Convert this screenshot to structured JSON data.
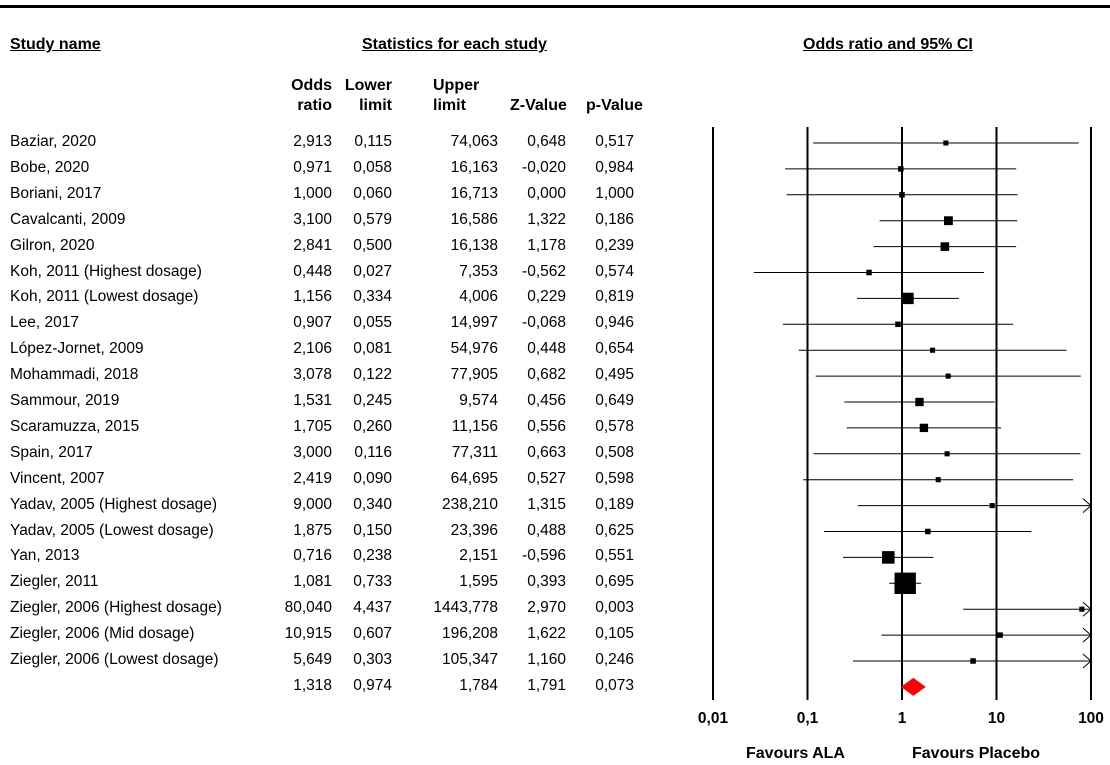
{
  "headers": {
    "study_name": "Study name",
    "statistics": "Statistics for each study",
    "forest": "Odds ratio and 95% CI"
  },
  "columns": {
    "or": [
      "Odds",
      "ratio"
    ],
    "lower": [
      "Lower",
      "limit"
    ],
    "upper": [
      "Upper",
      "limit"
    ],
    "z": [
      "Z-Value"
    ],
    "p": [
      "p-Value"
    ]
  },
  "chart_data": {
    "type": "forest",
    "scale": "log",
    "xlim": [
      0.01,
      100
    ],
    "x_ticks": [
      "0,01",
      "0,1",
      "1",
      "10",
      "100"
    ],
    "x_tick_values": [
      0.01,
      0.1,
      1,
      10,
      100
    ],
    "favours_left": "Favours ALA",
    "favours_right": "Favours Placebo",
    "summary_color": "#ff0000",
    "studies": [
      {
        "name": "Baziar, 2020",
        "or": "2,913",
        "lower": "0,115",
        "upper": "74,063",
        "z": "0,648",
        "p": "0,517",
        "or_v": 2.913,
        "lo_v": 0.115,
        "hi_v": 74.063,
        "weight": 0.6
      },
      {
        "name": "Bobe, 2020",
        "or": "0,971",
        "lower": "0,058",
        "upper": "16,163",
        "z": "-0,020",
        "p": "0,984",
        "or_v": 0.971,
        "lo_v": 0.058,
        "hi_v": 16.163,
        "weight": 0.7
      },
      {
        "name": "Boriani, 2017",
        "or": "1,000",
        "lower": "0,060",
        "upper": "16,713",
        "z": "0,000",
        "p": "1,000",
        "or_v": 1.0,
        "lo_v": 0.06,
        "hi_v": 16.713,
        "weight": 0.7
      },
      {
        "name": "Cavalcanti, 2009",
        "or": "3,100",
        "lower": "0,579",
        "upper": "16,586",
        "z": "1,322",
        "p": "0,186",
        "or_v": 3.1,
        "lo_v": 0.579,
        "hi_v": 16.586,
        "weight": 1.8
      },
      {
        "name": "Gilron, 2020",
        "or": "2,841",
        "lower": "0,500",
        "upper": "16,138",
        "z": "1,178",
        "p": "0,239",
        "or_v": 2.841,
        "lo_v": 0.5,
        "hi_v": 16.138,
        "weight": 1.7
      },
      {
        "name": "Koh, 2011 (Highest dosage)",
        "or": "0,448",
        "lower": "0,027",
        "upper": "7,353",
        "z": "-0,562",
        "p": "0,574",
        "or_v": 0.448,
        "lo_v": 0.027,
        "hi_v": 7.353,
        "weight": 0.7
      },
      {
        "name": "Koh, 2011 (Lowest dosage)",
        "or": "1,156",
        "lower": "0,334",
        "upper": "4,006",
        "z": "0,229",
        "p": "0,819",
        "or_v": 1.156,
        "lo_v": 0.334,
        "hi_v": 4.006,
        "weight": 3.0
      },
      {
        "name": "Lee, 2017",
        "or": "0,907",
        "lower": "0,055",
        "upper": "14,997",
        "z": "-0,068",
        "p": "0,946",
        "or_v": 0.907,
        "lo_v": 0.055,
        "hi_v": 14.997,
        "weight": 0.7
      },
      {
        "name": "López-Jornet, 2009",
        "or": "2,106",
        "lower": "0,081",
        "upper": "54,976",
        "z": "0,448",
        "p": "0,654",
        "or_v": 2.106,
        "lo_v": 0.081,
        "hi_v": 54.976,
        "weight": 0.6
      },
      {
        "name": "Mohammadi, 2018",
        "or": "3,078",
        "lower": "0,122",
        "upper": "77,905",
        "z": "0,682",
        "p": "0,495",
        "or_v": 3.078,
        "lo_v": 0.122,
        "hi_v": 77.905,
        "weight": 0.6
      },
      {
        "name": "Sammour, 2019",
        "or": "1,531",
        "lower": "0,245",
        "upper": "9,574",
        "z": "0,456",
        "p": "0,649",
        "or_v": 1.531,
        "lo_v": 0.245,
        "hi_v": 9.574,
        "weight": 1.6
      },
      {
        "name": "Scaramuzza, 2015",
        "or": "1,705",
        "lower": "0,260",
        "upper": "11,156",
        "z": "0,556",
        "p": "0,578",
        "or_v": 1.705,
        "lo_v": 0.26,
        "hi_v": 11.156,
        "weight": 1.6
      },
      {
        "name": "Spain, 2017",
        "or": "3,000",
        "lower": "0,116",
        "upper": "77,311",
        "z": "0,663",
        "p": "0,508",
        "or_v": 3.0,
        "lo_v": 0.116,
        "hi_v": 77.311,
        "weight": 0.6
      },
      {
        "name": "Vincent, 2007",
        "or": "2,419",
        "lower": "0,090",
        "upper": "64,695",
        "z": "0,527",
        "p": "0,598",
        "or_v": 2.419,
        "lo_v": 0.09,
        "hi_v": 64.695,
        "weight": 0.6
      },
      {
        "name": "Yadav, 2005 (Highest dosage)",
        "or": "9,000",
        "lower": "0,340",
        "upper": "238,210",
        "z": "1,315",
        "p": "0,189",
        "or_v": 9.0,
        "lo_v": 0.34,
        "hi_v": 238.21,
        "weight": 0.6
      },
      {
        "name": "Yadav, 2005 (Lowest dosage)",
        "or": "1,875",
        "lower": "0,150",
        "upper": "23,396",
        "z": "0,488",
        "p": "0,625",
        "or_v": 1.875,
        "lo_v": 0.15,
        "hi_v": 23.396,
        "weight": 0.7
      },
      {
        "name": "Yan, 2013",
        "or": "0,716",
        "lower": "0,238",
        "upper": "2,151",
        "z": "-0,596",
        "p": "0,551",
        "or_v": 0.716,
        "lo_v": 0.238,
        "hi_v": 2.151,
        "weight": 3.6
      },
      {
        "name": "Ziegler, 2011",
        "or": "1,081",
        "lower": "0,733",
        "upper": "1,595",
        "z": "0,393",
        "p": "0,695",
        "or_v": 1.081,
        "lo_v": 0.733,
        "hi_v": 1.595,
        "weight": 10.5
      },
      {
        "name": "Ziegler, 2006 (Highest dosage)",
        "or": "80,040",
        "lower": "4,437",
        "upper": "1443,778",
        "z": "2,970",
        "p": "0,003",
        "or_v": 80.04,
        "lo_v": 4.437,
        "hi_v": 1443.778,
        "weight": 0.6
      },
      {
        "name": "Ziegler, 2006 (Mid dosage)",
        "or": "10,915",
        "lower": "0,607",
        "upper": "196,208",
        "z": "1,622",
        "p": "0,105",
        "or_v": 10.915,
        "lo_v": 0.607,
        "hi_v": 196.208,
        "weight": 0.7
      },
      {
        "name": "Ziegler, 2006 (Lowest dosage)",
        "or": "5,649",
        "lower": "0,303",
        "upper": "105,347",
        "z": "1,160",
        "p": "0,246",
        "or_v": 5.649,
        "lo_v": 0.303,
        "hi_v": 105.347,
        "weight": 0.7
      }
    ],
    "summary": {
      "or": "1,318",
      "lower": "0,974",
      "upper": "1,784",
      "z": "1,791",
      "p": "0,073",
      "or_v": 1.318,
      "lo_v": 0.974,
      "hi_v": 1.784
    }
  }
}
